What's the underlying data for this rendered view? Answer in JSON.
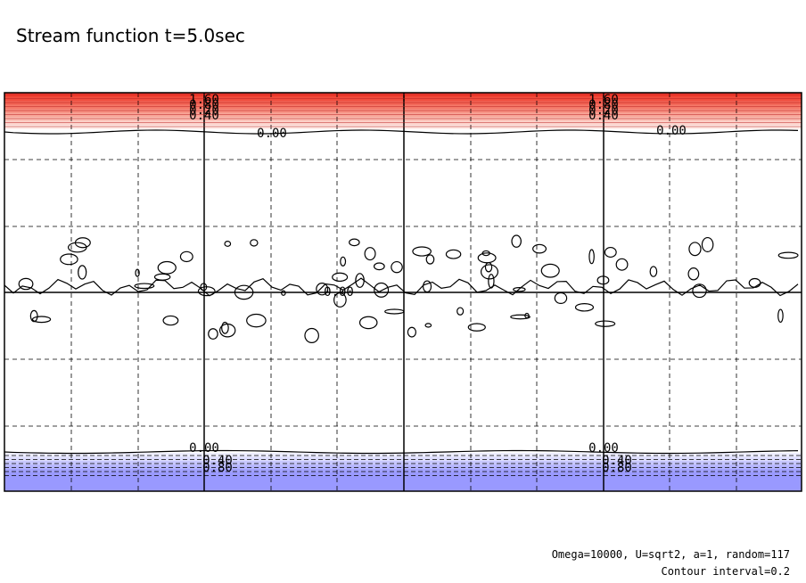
{
  "title": "Stream function t=5.0sec",
  "footnote": [
    "Omega=10000, U=sqrt2, a=1, random=117",
    "Contour interval=0.2"
  ],
  "contour_labels": {
    "top": [
      "1.60",
      "0.80",
      "0.20",
      "0.40"
    ],
    "zero_top": "0.00",
    "center": "0.00",
    "zero_bottom": "0.00",
    "bottom": [
      "0.40",
      "0.80"
    ]
  }
}
